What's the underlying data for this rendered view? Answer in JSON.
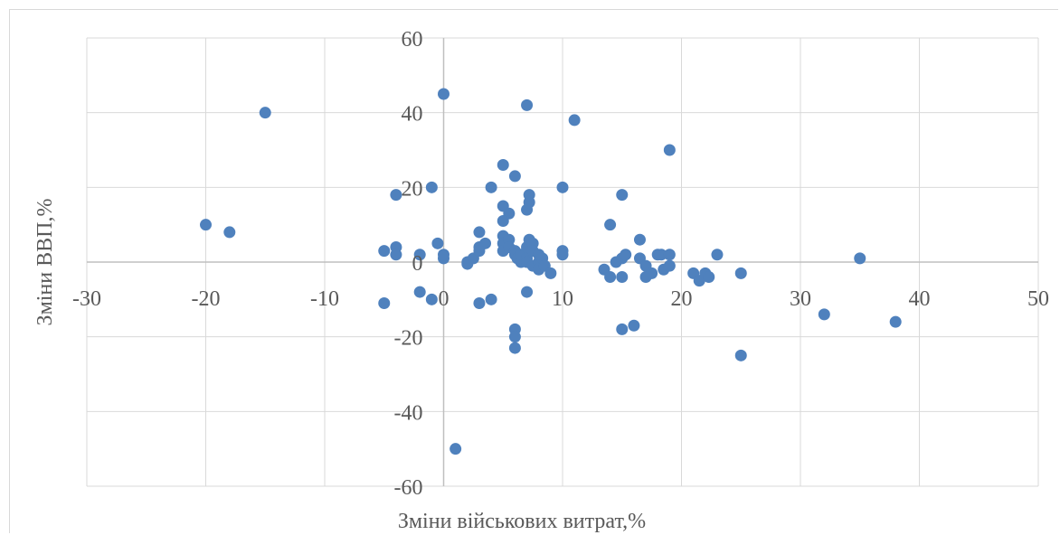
{
  "chart_data": {
    "type": "scatter",
    "title": "",
    "xlabel": "Зміни військових витрат,%",
    "ylabel": "Зміни ВВП,%",
    "xlim": [
      -30,
      50
    ],
    "ylim": [
      -60,
      60
    ],
    "x_ticks": [
      -30,
      -20,
      -10,
      0,
      10,
      20,
      30,
      40,
      50
    ],
    "y_ticks": [
      -60,
      -40,
      -20,
      0,
      20,
      40,
      60
    ],
    "grid": true,
    "legend": "none",
    "colors": {
      "point": "#4f81bd",
      "grid": "#d9d9d9",
      "text": "#595959"
    },
    "series": [
      {
        "points": [
          [
            -20,
            10
          ],
          [
            -18,
            8
          ],
          [
            -15,
            40
          ],
          [
            0,
            45
          ],
          [
            7,
            42
          ],
          [
            11,
            38
          ],
          [
            19,
            30
          ],
          [
            5,
            26
          ],
          [
            6,
            23
          ],
          [
            -1,
            20
          ],
          [
            4,
            20
          ],
          [
            10,
            20
          ],
          [
            -4,
            18
          ],
          [
            7.2,
            18
          ],
          [
            15,
            18
          ],
          [
            7,
            14
          ],
          [
            7.2,
            16
          ],
          [
            5,
            15
          ],
          [
            5.5,
            13
          ],
          [
            5,
            11
          ],
          [
            14,
            10
          ],
          [
            -5,
            3
          ],
          [
            -2,
            2
          ],
          [
            -4,
            4
          ],
          [
            -4,
            2
          ],
          [
            -0.5,
            5
          ],
          [
            0,
            1
          ],
          [
            0,
            2
          ],
          [
            2,
            0
          ],
          [
            2,
            -0.5
          ],
          [
            2.5,
            1
          ],
          [
            3,
            8
          ],
          [
            3,
            4
          ],
          [
            3.5,
            5
          ],
          [
            3,
            3
          ],
          [
            5,
            7
          ],
          [
            5,
            5
          ],
          [
            5,
            3
          ],
          [
            5.5,
            6
          ],
          [
            5.5,
            4
          ],
          [
            6,
            3
          ],
          [
            6,
            2
          ],
          [
            6.2,
            1
          ],
          [
            6.5,
            0
          ],
          [
            6.5,
            2
          ],
          [
            7,
            4
          ],
          [
            7,
            1
          ],
          [
            7,
            0
          ],
          [
            7.2,
            6
          ],
          [
            7.5,
            5
          ],
          [
            7.5,
            3
          ],
          [
            7.5,
            -1
          ],
          [
            8,
            2
          ],
          [
            8,
            0
          ],
          [
            8,
            -2
          ],
          [
            8.3,
            1
          ],
          [
            8.5,
            -1
          ],
          [
            9,
            -3
          ],
          [
            10,
            3
          ],
          [
            10,
            2
          ],
          [
            13.5,
            -2
          ],
          [
            14,
            -4
          ],
          [
            14.5,
            0
          ],
          [
            15,
            -4
          ],
          [
            15,
            1
          ],
          [
            15.3,
            2
          ],
          [
            16.5,
            6
          ],
          [
            16.5,
            1
          ],
          [
            17,
            -1
          ],
          [
            17,
            -4
          ],
          [
            17.5,
            -3
          ],
          [
            18,
            2
          ],
          [
            18.5,
            -2
          ],
          [
            18.3,
            2
          ],
          [
            19,
            -1
          ],
          [
            19,
            2
          ],
          [
            21,
            -3
          ],
          [
            21.5,
            -5
          ],
          [
            22,
            -3
          ],
          [
            22.3,
            -4
          ],
          [
            23,
            2
          ],
          [
            25,
            -3
          ],
          [
            35,
            1
          ],
          [
            -5,
            -11
          ],
          [
            -2,
            -8
          ],
          [
            -1,
            -10
          ],
          [
            3,
            -11
          ],
          [
            4,
            -10
          ],
          [
            7,
            -8
          ],
          [
            6,
            -18
          ],
          [
            6,
            -20
          ],
          [
            6,
            -23
          ],
          [
            15,
            -18
          ],
          [
            16,
            -17
          ],
          [
            25,
            -25
          ],
          [
            32,
            -14
          ],
          [
            38,
            -16
          ],
          [
            1,
            -50
          ]
        ]
      }
    ]
  }
}
